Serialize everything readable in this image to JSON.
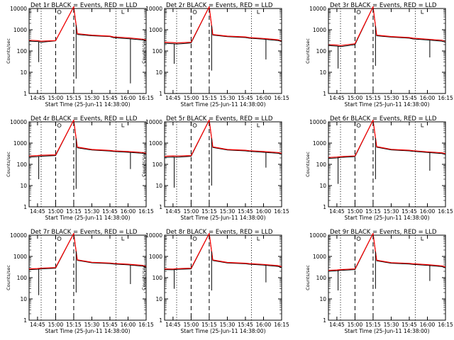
{
  "figure": {
    "xlabel": "Start Time (25-Jun-11 14:38:00)",
    "ylabel": "Counts/sec",
    "x_tick_labels": [
      "14:45",
      "15:00",
      "15:15",
      "15:30",
      "15:45",
      "16:00",
      "16:15"
    ],
    "y_tick_labels": [
      "1",
      "10",
      "100",
      "1000",
      "10000"
    ],
    "events_color": "#000000",
    "lld_color": "#ff0000"
  },
  "chart_data": [
    {
      "type": "line",
      "title": "Det 1r BLACK = Events, RED = LLD",
      "xlabel": "Start Time (25-Jun-11 14:38:00)",
      "ylabel": "Counts/sec",
      "x_minutes_after_start": [
        0,
        7,
        10,
        22,
        37,
        40,
        52,
        67,
        70,
        82,
        94,
        97
      ],
      "series": [
        {
          "name": "Events",
          "color": "#000000",
          "values": [
            290,
            280,
            260,
            300,
            12000,
            600,
            520,
            480,
            420,
            380,
            330,
            300
          ]
        },
        {
          "name": "LLD",
          "color": "#ff0000",
          "values": [
            320,
            310,
            290,
            310,
            12000,
            650,
            560,
            500,
            460,
            420,
            360,
            330
          ]
        }
      ],
      "dips": [
        {
          "x": 8,
          "y": 30
        },
        {
          "x": 39,
          "y": 5
        },
        {
          "x": 84,
          "y": 3
        }
      ],
      "dashed_lines_x": [
        22,
        37
      ],
      "dotted_lines_x": [
        10,
        72
      ],
      "ylim": [
        1,
        10000
      ],
      "yscale": "log",
      "grid": false
    },
    {
      "type": "line",
      "title": "Det 2r BLACK = Events, RED = LLD",
      "xlabel": "Start Time (25-Jun-11 14:38:00)",
      "ylabel": "Counts/sec",
      "x_minutes_after_start": [
        0,
        7,
        10,
        22,
        37,
        40,
        52,
        67,
        70,
        82,
        94,
        97
      ],
      "series": [
        {
          "name": "Events",
          "color": "#000000",
          "values": [
            230,
            220,
            210,
            240,
            12000,
            560,
            470,
            430,
            400,
            360,
            310,
            280
          ]
        },
        {
          "name": "LLD",
          "color": "#ff0000",
          "values": [
            260,
            250,
            240,
            260,
            12000,
            600,
            500,
            460,
            430,
            390,
            340,
            300
          ]
        }
      ],
      "dips": [
        {
          "x": 8,
          "y": 25
        },
        {
          "x": 39,
          "y": 12
        },
        {
          "x": 84,
          "y": 40
        }
      ],
      "dashed_lines_x": [
        22,
        37
      ],
      "dotted_lines_x": [
        10,
        72
      ],
      "ylim": [
        1,
        10000
      ],
      "yscale": "log",
      "grid": false
    },
    {
      "type": "line",
      "title": "Det 3r BLACK = Events, RED = LLD",
      "xlabel": "Start Time (25-Jun-11 14:38:00)",
      "ylabel": "Counts/sec",
      "x_minutes_after_start": [
        0,
        7,
        10,
        22,
        37,
        40,
        52,
        67,
        70,
        82,
        94,
        97
      ],
      "series": [
        {
          "name": "Events",
          "color": "#000000",
          "values": [
            180,
            170,
            160,
            200,
            12000,
            520,
            450,
            400,
            370,
            330,
            290,
            260
          ]
        },
        {
          "name": "LLD",
          "color": "#ff0000",
          "values": [
            200,
            190,
            180,
            220,
            12000,
            560,
            480,
            430,
            400,
            360,
            320,
            290
          ]
        }
      ],
      "dips": [
        {
          "x": 8,
          "y": 15
        },
        {
          "x": 39,
          "y": 20
        },
        {
          "x": 84,
          "y": 50
        }
      ],
      "dashed_lines_x": [
        22,
        37
      ],
      "dotted_lines_x": [
        10,
        72
      ],
      "ylim": [
        1,
        10000
      ],
      "yscale": "log",
      "grid": false
    },
    {
      "type": "line",
      "title": "Det 4r BLACK = Events, RED = LLD",
      "xlabel": "Start Time (25-Jun-11 14:38:00)",
      "ylabel": "Counts/sec",
      "x_minutes_after_start": [
        0,
        7,
        10,
        22,
        37,
        40,
        52,
        67,
        70,
        82,
        94,
        97
      ],
      "series": [
        {
          "name": "Events",
          "color": "#000000",
          "values": [
            220,
            230,
            240,
            260,
            12000,
            600,
            470,
            420,
            400,
            370,
            330,
            300
          ]
        },
        {
          "name": "LLD",
          "color": "#ff0000",
          "values": [
            250,
            260,
            270,
            280,
            12000,
            650,
            500,
            450,
            430,
            400,
            360,
            330
          ]
        }
      ],
      "dips": [
        {
          "x": 8,
          "y": 20
        },
        {
          "x": 39,
          "y": 7
        },
        {
          "x": 84,
          "y": 60
        }
      ],
      "dashed_lines_x": [
        22,
        37
      ],
      "dotted_lines_x": [
        10,
        72
      ],
      "ylim": [
        1,
        10000
      ],
      "yscale": "log",
      "grid": false
    },
    {
      "type": "line",
      "title": "Det 5r BLACK = Events, RED = LLD",
      "xlabel": "Start Time (25-Jun-11 14:38:00)",
      "ylabel": "Counts/sec",
      "x_minutes_after_start": [
        0,
        7,
        10,
        22,
        37,
        40,
        52,
        67,
        70,
        82,
        94,
        97
      ],
      "series": [
        {
          "name": "Events",
          "color": "#000000",
          "values": [
            210,
            220,
            215,
            240,
            12000,
            620,
            470,
            430,
            410,
            370,
            330,
            300
          ]
        },
        {
          "name": "LLD",
          "color": "#ff0000",
          "values": [
            240,
            250,
            245,
            260,
            12000,
            660,
            500,
            460,
            440,
            400,
            360,
            330
          ]
        }
      ],
      "dips": [
        {
          "x": 8,
          "y": 8
        },
        {
          "x": 39,
          "y": 10
        },
        {
          "x": 84,
          "y": 70
        }
      ],
      "dashed_lines_x": [
        22,
        37
      ],
      "dotted_lines_x": [
        10,
        72
      ],
      "ylim": [
        1,
        10000
      ],
      "yscale": "log",
      "grid": false
    },
    {
      "type": "line",
      "title": "Det 6r BLACK = Events, RED = LLD",
      "xlabel": "Start Time (25-Jun-11 14:38:00)",
      "ylabel": "Counts/sec",
      "x_minutes_after_start": [
        0,
        7,
        10,
        22,
        37,
        40,
        52,
        67,
        70,
        82,
        94,
        97
      ],
      "series": [
        {
          "name": "Events",
          "color": "#000000",
          "values": [
            190,
            200,
            210,
            230,
            12000,
            640,
            480,
            430,
            410,
            360,
            320,
            290
          ]
        },
        {
          "name": "LLD",
          "color": "#ff0000",
          "values": [
            210,
            220,
            230,
            250,
            12000,
            680,
            510,
            460,
            440,
            390,
            350,
            320
          ]
        }
      ],
      "dips": [
        {
          "x": 8,
          "y": 12
        },
        {
          "x": 39,
          "y": 20
        },
        {
          "x": 84,
          "y": 50
        }
      ],
      "dashed_lines_x": [
        22,
        37
      ],
      "dotted_lines_x": [
        10,
        72
      ],
      "ylim": [
        1,
        10000
      ],
      "yscale": "log",
      "grid": false
    },
    {
      "type": "line",
      "title": "Det 7r BLACK = Events, RED = LLD",
      "xlabel": "Start Time (25-Jun-11 14:38:00)",
      "ylabel": "Counts/sec",
      "x_minutes_after_start": [
        0,
        7,
        10,
        22,
        37,
        40,
        52,
        67,
        70,
        82,
        94,
        97
      ],
      "series": [
        {
          "name": "Events",
          "color": "#000000",
          "values": [
            240,
            250,
            260,
            280,
            12000,
            650,
            500,
            460,
            440,
            400,
            350,
            310
          ]
        },
        {
          "name": "LLD",
          "color": "#ff0000",
          "values": [
            260,
            270,
            280,
            300,
            12000,
            690,
            530,
            490,
            470,
            430,
            380,
            340
          ]
        }
      ],
      "dips": [
        {
          "x": 8,
          "y": 15
        },
        {
          "x": 39,
          "y": 20
        },
        {
          "x": 84,
          "y": 50
        }
      ],
      "dashed_lines_x": [
        22,
        37
      ],
      "dotted_lines_x": [
        10,
        72
      ],
      "ylim": [
        1,
        10000
      ],
      "yscale": "log",
      "grid": false
    },
    {
      "type": "line",
      "title": "Det 8r BLACK = Events, RED = LLD",
      "xlabel": "Start Time (25-Jun-11 14:38:00)",
      "ylabel": "Counts/sec",
      "x_minutes_after_start": [
        0,
        7,
        10,
        22,
        37,
        40,
        52,
        67,
        70,
        82,
        94,
        97
      ],
      "series": [
        {
          "name": "Events",
          "color": "#000000",
          "values": [
            240,
            235,
            245,
            260,
            12000,
            640,
            490,
            450,
            430,
            390,
            340,
            300
          ]
        },
        {
          "name": "LLD",
          "color": "#ff0000",
          "values": [
            260,
            255,
            265,
            280,
            12000,
            680,
            520,
            480,
            460,
            420,
            370,
            330
          ]
        }
      ],
      "dips": [
        {
          "x": 8,
          "y": 30
        },
        {
          "x": 39,
          "y": 25
        },
        {
          "x": 84,
          "y": 60
        }
      ],
      "dashed_lines_x": [
        22,
        37
      ],
      "dotted_lines_x": [
        10,
        72
      ],
      "ylim": [
        1,
        10000
      ],
      "yscale": "log",
      "grid": false
    },
    {
      "type": "line",
      "title": "Det 9r BLACK = Events, RED = LLD",
      "xlabel": "Start Time (25-Jun-11 14:38:00)",
      "ylabel": "Counts/sec",
      "x_minutes_after_start": [
        0,
        7,
        10,
        22,
        37,
        40,
        52,
        67,
        70,
        82,
        94,
        97
      ],
      "series": [
        {
          "name": "Events",
          "color": "#000000",
          "values": [
            200,
            210,
            220,
            240,
            12000,
            620,
            480,
            440,
            420,
            380,
            330,
            290
          ]
        },
        {
          "name": "LLD",
          "color": "#ff0000",
          "values": [
            220,
            230,
            240,
            260,
            12000,
            660,
            510,
            470,
            450,
            410,
            360,
            320
          ]
        }
      ],
      "dips": [
        {
          "x": 8,
          "y": 25
        },
        {
          "x": 39,
          "y": 30
        },
        {
          "x": 84,
          "y": 70
        }
      ],
      "dashed_lines_x": [
        22,
        37
      ],
      "dotted_lines_x": [
        10,
        72
      ],
      "ylim": [
        1,
        10000
      ],
      "yscale": "log",
      "grid": false
    }
  ]
}
